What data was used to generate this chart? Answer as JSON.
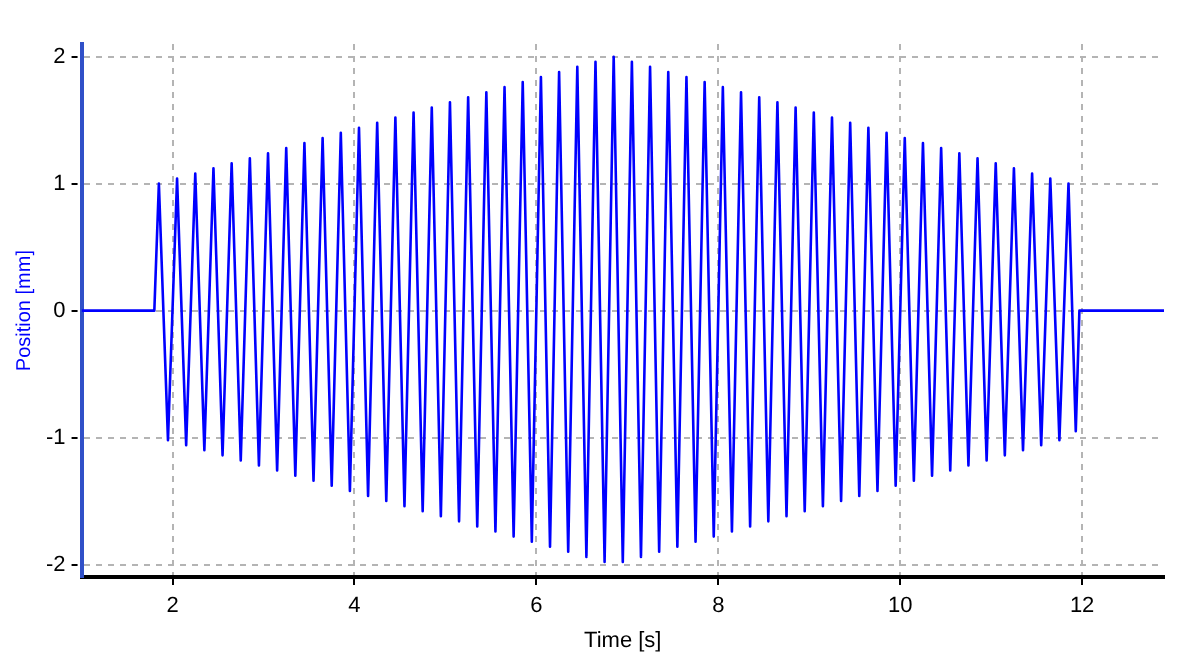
{
  "chart_data": {
    "type": "line",
    "xlabel": "Time [s]",
    "ylabel": "Position [mm]",
    "xlim": [
      1,
      12.9
    ],
    "ylim": [
      -2.1,
      2.1
    ],
    "xticks": [
      2,
      4,
      6,
      8,
      10,
      12
    ],
    "yticks": [
      -2,
      -1,
      0,
      1,
      2
    ],
    "grid": true,
    "legend": false,
    "marker": "none",
    "line_style": "solid",
    "series": [
      {
        "color": "#0000ff",
        "x": [
          1,
          1.8,
          1.85,
          1.95,
          2.05,
          2.15,
          2.25,
          2.35,
          2.45,
          2.55,
          2.65,
          2.75,
          2.85,
          2.95,
          3.05,
          3.15,
          3.25,
          3.35,
          3.45,
          3.55,
          3.65,
          3.75,
          3.85,
          3.95,
          4.05,
          4.15,
          4.25,
          4.35,
          4.45,
          4.55,
          4.65,
          4.75,
          4.85,
          4.95,
          5.05,
          5.15,
          5.25,
          5.35,
          5.45,
          5.55,
          5.65,
          5.75,
          5.85,
          5.95,
          6.05,
          6.15,
          6.25,
          6.35,
          6.45,
          6.55,
          6.65,
          6.75,
          6.85,
          6.95,
          7.05,
          7.15,
          7.25,
          7.35,
          7.45,
          7.55,
          7.65,
          7.75,
          7.85,
          7.95,
          8.05,
          8.15,
          8.25,
          8.35,
          8.45,
          8.55,
          8.65,
          8.75,
          8.85,
          8.95,
          9.05,
          9.15,
          9.25,
          9.35,
          9.45,
          9.55,
          9.65,
          9.75,
          9.85,
          9.95,
          10.05,
          10.15,
          10.25,
          10.35,
          10.45,
          10.55,
          10.65,
          10.75,
          10.85,
          10.95,
          11.05,
          11.15,
          11.25,
          11.35,
          11.45,
          11.55,
          11.65,
          11.75,
          11.85,
          11.93,
          11.97,
          12.9
        ],
        "values": [
          0,
          0,
          1,
          -1.02,
          1.04,
          -1.06,
          1.08,
          -1.1,
          1.12,
          -1.14,
          1.16,
          -1.18,
          1.2,
          -1.22,
          1.24,
          -1.26,
          1.28,
          -1.3,
          1.32,
          -1.34,
          1.36,
          -1.38,
          1.4,
          -1.42,
          1.44,
          -1.46,
          1.48,
          -1.5,
          1.52,
          -1.54,
          1.56,
          -1.58,
          1.6,
          -1.62,
          1.64,
          -1.66,
          1.68,
          -1.7,
          1.72,
          -1.74,
          1.76,
          -1.78,
          1.8,
          -1.82,
          1.84,
          -1.86,
          1.88,
          -1.9,
          1.92,
          -1.94,
          1.96,
          -1.98,
          2,
          -1.98,
          1.96,
          -1.94,
          1.92,
          -1.9,
          1.88,
          -1.86,
          1.84,
          -1.82,
          1.8,
          -1.78,
          1.76,
          -1.74,
          1.72,
          -1.7,
          1.68,
          -1.66,
          1.64,
          -1.62,
          1.6,
          -1.58,
          1.56,
          -1.54,
          1.52,
          -1.5,
          1.48,
          -1.46,
          1.44,
          -1.42,
          1.4,
          -1.38,
          1.36,
          -1.34,
          1.32,
          -1.3,
          1.28,
          -1.26,
          1.24,
          -1.22,
          1.2,
          -1.18,
          1.16,
          -1.14,
          1.12,
          -1.1,
          1.08,
          -1.06,
          1.04,
          -1.02,
          1,
          -0.95,
          0,
          0
        ]
      }
    ]
  }
}
